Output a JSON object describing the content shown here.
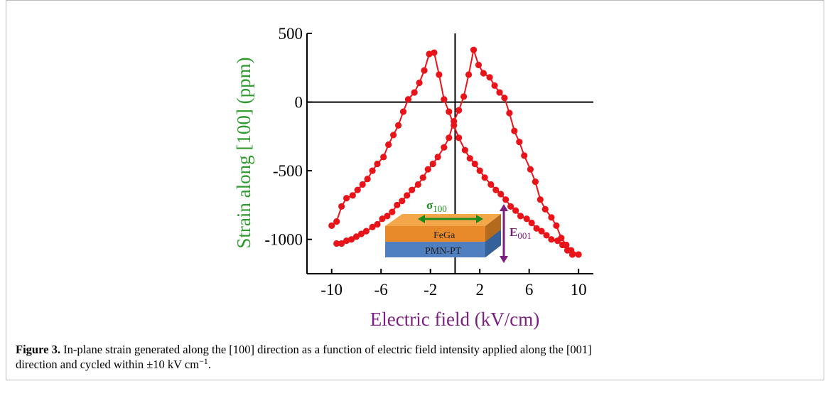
{
  "chart_data": {
    "type": "line",
    "xlabel": "Electric field (kV/cm)",
    "ylabel": "Strain along [100] (ppm)",
    "xlabel_color": "#7a1f7f",
    "ylabel_color": "#2e9a2e",
    "color": "#e8141a",
    "xlim": [
      -12,
      11.2
    ],
    "ylim": [
      -1250,
      500
    ],
    "xticks": [
      -10,
      -6,
      -2,
      2,
      6,
      10
    ],
    "yticks": [
      500,
      0,
      -500,
      -1000
    ],
    "x": [
      -10,
      -9.6,
      -9.2,
      -8.8,
      -8.3,
      -7.9,
      -7.5,
      -7.1,
      -6.7,
      -6.3,
      -5.8,
      -5.4,
      -5,
      -4.6,
      -4.2,
      -3.8,
      -3.3,
      -2.9,
      -2.5,
      -2.1,
      -1.7,
      -1.3,
      -0.9,
      -0.5,
      -0.1,
      0.3,
      0.8,
      1.2,
      1.6,
      2,
      2.4,
      2.9,
      3.3,
      3.7,
      4.1,
      4.5,
      4.9,
      5.3,
      5.8,
      6.2,
      6.6,
      7,
      7.4,
      7.8,
      8.3,
      8.7,
      9.1,
      9.5,
      10,
      9.4,
      9,
      8.6,
      8.2,
      7.8,
      7.3,
      6.9,
      6.5,
      6.1,
      5.6,
      5.2,
      4.8,
      4.4,
      4,
      3.6,
      3.2,
      2.8,
      2.3,
      1.9,
      1.5,
      1.1,
      0.7,
      0.3,
      -0.1,
      -0.5,
      -0.9,
      -1.4,
      -1.8,
      -2.2,
      -2.6,
      -3,
      -3.5,
      -3.9,
      -4.3,
      -4.7,
      -5.1,
      -5.5,
      -5.9,
      -6.3,
      -6.7,
      -7.2,
      -7.6,
      -8,
      -8.4,
      -8.8,
      -9.2,
      -9.6
    ],
    "values": [
      -900,
      -870,
      -760,
      -700,
      -680,
      -640,
      -600,
      -560,
      -500,
      -450,
      -400,
      -310,
      -240,
      -170,
      -70,
      20,
      70,
      140,
      230,
      350,
      360,
      200,
      20,
      -70,
      -170,
      -260,
      -350,
      -410,
      -450,
      -500,
      -550,
      -600,
      -640,
      -670,
      -710,
      -760,
      -790,
      -830,
      -850,
      -880,
      -920,
      -940,
      -970,
      -1000,
      -1010,
      -1040,
      -1080,
      -1110,
      -1110,
      -1080,
      -1040,
      -990,
      -900,
      -840,
      -780,
      -710,
      -580,
      -490,
      -390,
      -290,
      -210,
      -80,
      30,
      70,
      120,
      180,
      210,
      270,
      380,
      200,
      40,
      -60,
      -140,
      -260,
      -330,
      -400,
      -450,
      -490,
      -550,
      -600,
      -640,
      -680,
      -720,
      -750,
      -800,
      -830,
      -850,
      -890,
      -910,
      -940,
      -960,
      -980,
      -1000,
      -1010,
      -1030,
      -1030
    ],
    "inset": {
      "top_layer": "FeGa",
      "bottom_layer": "PMN-PT",
      "stress": {
        "symbol": "σ",
        "sub": "100",
        "color": "#1e8a1e"
      },
      "field": {
        "symbol": "E",
        "sub": "001",
        "color": "#7a1f7f"
      }
    }
  },
  "caption": {
    "label": "Figure 3.",
    "text": " In-plane strain generated along the [100] direction as a function of electric field intensity applied along the [001] direction and cycled within ±10 kV cm",
    "sup": "−1",
    "end": "."
  }
}
